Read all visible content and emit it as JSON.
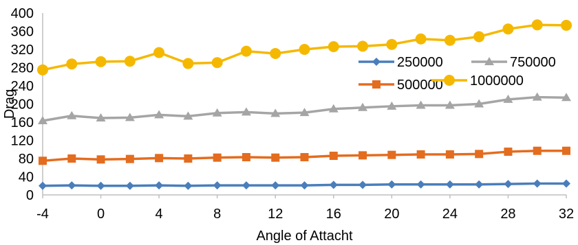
{
  "chart_data": {
    "type": "line",
    "title": "",
    "xlabel": "Angle of Attacht",
    "ylabel": "Drag",
    "x": [
      -4,
      -2,
      0,
      2,
      4,
      6,
      8,
      10,
      12,
      14,
      16,
      18,
      20,
      22,
      24,
      26,
      28,
      30,
      32
    ],
    "xlim": [
      -4,
      32
    ],
    "x_ticks": [
      "-4",
      "0",
      "4",
      "8",
      "12",
      "16",
      "20",
      "24",
      "28",
      "32"
    ],
    "ylim": [
      0,
      400
    ],
    "y_ticks": [
      "0",
      "40",
      "80",
      "120",
      "160",
      "200",
      "240",
      "280",
      "320",
      "360",
      "400"
    ],
    "grid": false,
    "legend_position": "right",
    "series": [
      {
        "name": "250000",
        "color": "#4a7ebb",
        "marker": "diamond",
        "values": [
          20,
          21,
          20,
          20,
          21,
          20,
          21,
          21,
          21,
          21,
          22,
          22,
          23,
          23,
          23,
          23,
          24,
          25,
          25
        ]
      },
      {
        "name": "500000",
        "color": "#e46c1f",
        "marker": "square",
        "values": [
          75,
          80,
          78,
          79,
          81,
          80,
          82,
          83,
          82,
          83,
          86,
          87,
          88,
          89,
          89,
          90,
          95,
          97,
          97
        ]
      },
      {
        "name": "750000",
        "color": "#a5a5a5",
        "marker": "triangle",
        "values": [
          163,
          174,
          169,
          170,
          176,
          173,
          180,
          182,
          179,
          181,
          189,
          192,
          195,
          197,
          197,
          200,
          210,
          215,
          214
        ]
      },
      {
        "name": "1000000",
        "color": "#f5b800",
        "marker": "circle",
        "values": [
          275,
          288,
          293,
          294,
          313,
          289,
          291,
          316,
          311,
          320,
          326,
          327,
          331,
          343,
          340,
          348,
          365,
          374,
          373
        ]
      }
    ],
    "legend_order": [
      "250000",
      "750000",
      "500000",
      "1000000"
    ]
  }
}
